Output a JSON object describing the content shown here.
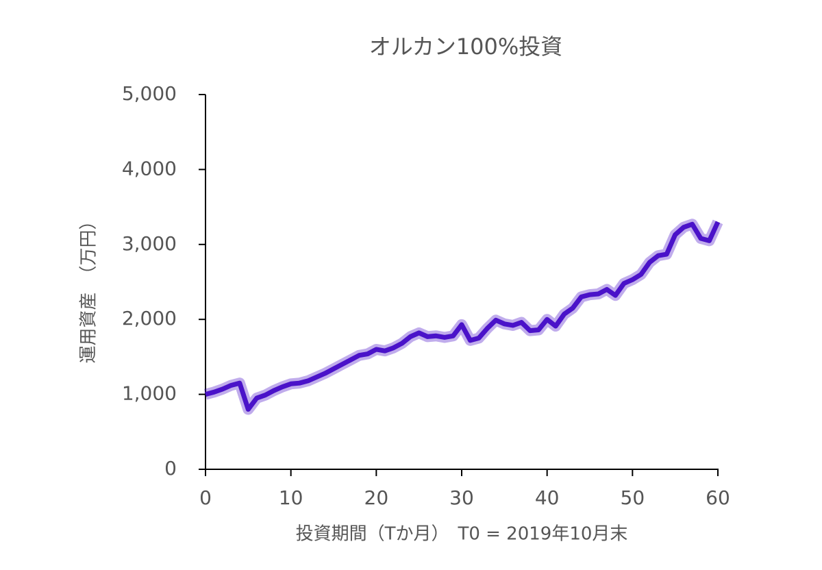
{
  "chart_data": {
    "type": "line",
    "title": "オルカン100%投資",
    "xlabel": "投資期間（Tか月）　T0 = 2019年10月末",
    "ylabel": "運用資産　（万円）",
    "color": "#4a12c9",
    "x": [
      0,
      1,
      2,
      3,
      4,
      5,
      6,
      7,
      8,
      9,
      10,
      11,
      12,
      13,
      14,
      15,
      16,
      17,
      18,
      19,
      20,
      21,
      22,
      23,
      24,
      25,
      26,
      27,
      28,
      29,
      30,
      31,
      32,
      33,
      34,
      35,
      36,
      37,
      38,
      39,
      40,
      41,
      42,
      43,
      44,
      45,
      46,
      47,
      48,
      49,
      50,
      51,
      52,
      53,
      54,
      55,
      56,
      57,
      58,
      59,
      60
    ],
    "values": [
      1000,
      1030,
      1070,
      1120,
      1150,
      800,
      950,
      990,
      1050,
      1100,
      1140,
      1150,
      1180,
      1230,
      1280,
      1340,
      1400,
      1460,
      1520,
      1540,
      1600,
      1580,
      1620,
      1680,
      1770,
      1820,
      1770,
      1780,
      1760,
      1780,
      1930,
      1720,
      1750,
      1880,
      1990,
      1940,
      1920,
      1960,
      1850,
      1860,
      2000,
      1910,
      2070,
      2150,
      2300,
      2330,
      2340,
      2400,
      2320,
      2480,
      2530,
      2600,
      2760,
      2850,
      2870,
      3130,
      3230,
      3270,
      3080,
      3050,
      3300
    ],
    "xlim": [
      0,
      60
    ],
    "xticks": [
      0,
      10,
      20,
      30,
      40,
      50,
      60
    ],
    "ylim": [
      0,
      5000
    ],
    "yticks": [
      0,
      {
        "value": 1000,
        "label": "1,000"
      },
      {
        "value": 2000,
        "label": "2,000"
      },
      {
        "value": 3000,
        "label": "3,000"
      },
      {
        "value": 4000,
        "label": "4,000"
      },
      {
        "value": 5000,
        "label": "5,000"
      }
    ]
  }
}
